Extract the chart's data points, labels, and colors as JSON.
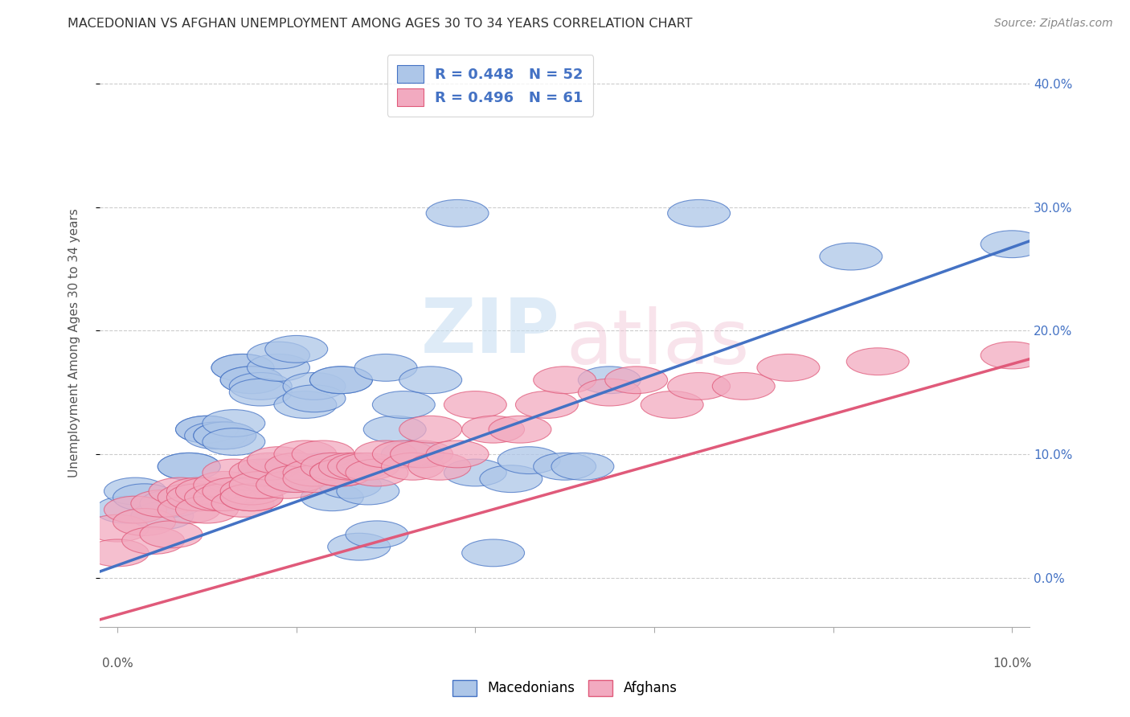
{
  "title": "MACEDONIAN VS AFGHAN UNEMPLOYMENT AMONG AGES 30 TO 34 YEARS CORRELATION CHART",
  "source": "Source: ZipAtlas.com",
  "ylabel": "Unemployment Among Ages 30 to 34 years",
  "ylabel_right_ticks": [
    "0.0%",
    "10.0%",
    "20.0%",
    "30.0%",
    "40.0%"
  ],
  "ylabel_right_vals": [
    0.0,
    0.1,
    0.2,
    0.3,
    0.4
  ],
  "legend1_r": "0.448",
  "legend1_n": "52",
  "legend2_r": "0.496",
  "legend2_n": "61",
  "blue_color": "#adc6e8",
  "pink_color": "#f2aac0",
  "blue_line_color": "#4472c4",
  "pink_line_color": "#e05a7a",
  "legend_text_color": "#4472c4",
  "grid_color": "#cccccc",
  "blue_line_x0": 0.0,
  "blue_line_y0": 0.01,
  "blue_line_x1": 0.101,
  "blue_line_y1": 0.27,
  "pink_line_x0": 0.0,
  "pink_line_y0": -0.03,
  "pink_line_x1": 0.101,
  "pink_line_y1": 0.175,
  "macedonian_x": [
    0.001,
    0.002,
    0.003,
    0.005,
    0.006,
    0.008,
    0.008,
    0.01,
    0.01,
    0.011,
    0.012,
    0.012,
    0.013,
    0.013,
    0.014,
    0.014,
    0.015,
    0.015,
    0.016,
    0.016,
    0.017,
    0.018,
    0.018,
    0.019,
    0.02,
    0.021,
    0.022,
    0.022,
    0.023,
    0.024,
    0.025,
    0.025,
    0.026,
    0.027,
    0.028,
    0.029,
    0.03,
    0.031,
    0.032,
    0.033,
    0.035,
    0.038,
    0.04,
    0.042,
    0.044,
    0.046,
    0.05,
    0.052,
    0.055,
    0.065,
    0.082,
    0.1
  ],
  "macedonian_y": [
    0.055,
    0.07,
    0.065,
    0.05,
    0.06,
    0.09,
    0.09,
    0.12,
    0.12,
    0.115,
    0.115,
    0.115,
    0.125,
    0.11,
    0.17,
    0.17,
    0.16,
    0.16,
    0.155,
    0.15,
    0.085,
    0.17,
    0.18,
    0.08,
    0.185,
    0.14,
    0.155,
    0.145,
    0.09,
    0.065,
    0.16,
    0.16,
    0.075,
    0.025,
    0.07,
    0.035,
    0.17,
    0.12,
    0.14,
    0.1,
    0.16,
    0.295,
    0.085,
    0.02,
    0.08,
    0.095,
    0.09,
    0.09,
    0.16,
    0.295,
    0.26,
    0.27
  ],
  "afghan_x": [
    0.0,
    0.0,
    0.002,
    0.003,
    0.004,
    0.005,
    0.006,
    0.007,
    0.008,
    0.008,
    0.009,
    0.009,
    0.01,
    0.01,
    0.011,
    0.012,
    0.012,
    0.013,
    0.013,
    0.014,
    0.015,
    0.015,
    0.015,
    0.016,
    0.016,
    0.017,
    0.018,
    0.019,
    0.02,
    0.02,
    0.021,
    0.022,
    0.022,
    0.023,
    0.024,
    0.025,
    0.025,
    0.026,
    0.027,
    0.028,
    0.029,
    0.03,
    0.032,
    0.033,
    0.034,
    0.035,
    0.036,
    0.038,
    0.04,
    0.042,
    0.045,
    0.048,
    0.05,
    0.055,
    0.058,
    0.062,
    0.065,
    0.07,
    0.075,
    0.085,
    0.1
  ],
  "afghan_y": [
    0.04,
    0.02,
    0.055,
    0.045,
    0.03,
    0.06,
    0.035,
    0.07,
    0.065,
    0.055,
    0.07,
    0.065,
    0.07,
    0.055,
    0.065,
    0.075,
    0.065,
    0.085,
    0.07,
    0.06,
    0.065,
    0.07,
    0.065,
    0.085,
    0.075,
    0.09,
    0.095,
    0.075,
    0.09,
    0.08,
    0.1,
    0.085,
    0.08,
    0.1,
    0.09,
    0.085,
    0.085,
    0.09,
    0.09,
    0.09,
    0.085,
    0.1,
    0.1,
    0.09,
    0.1,
    0.12,
    0.09,
    0.1,
    0.14,
    0.12,
    0.12,
    0.14,
    0.16,
    0.15,
    0.16,
    0.14,
    0.155,
    0.155,
    0.17,
    0.175,
    0.18
  ],
  "xmin": -0.002,
  "xmax": 0.102,
  "ymin": -0.04,
  "ymax": 0.42
}
